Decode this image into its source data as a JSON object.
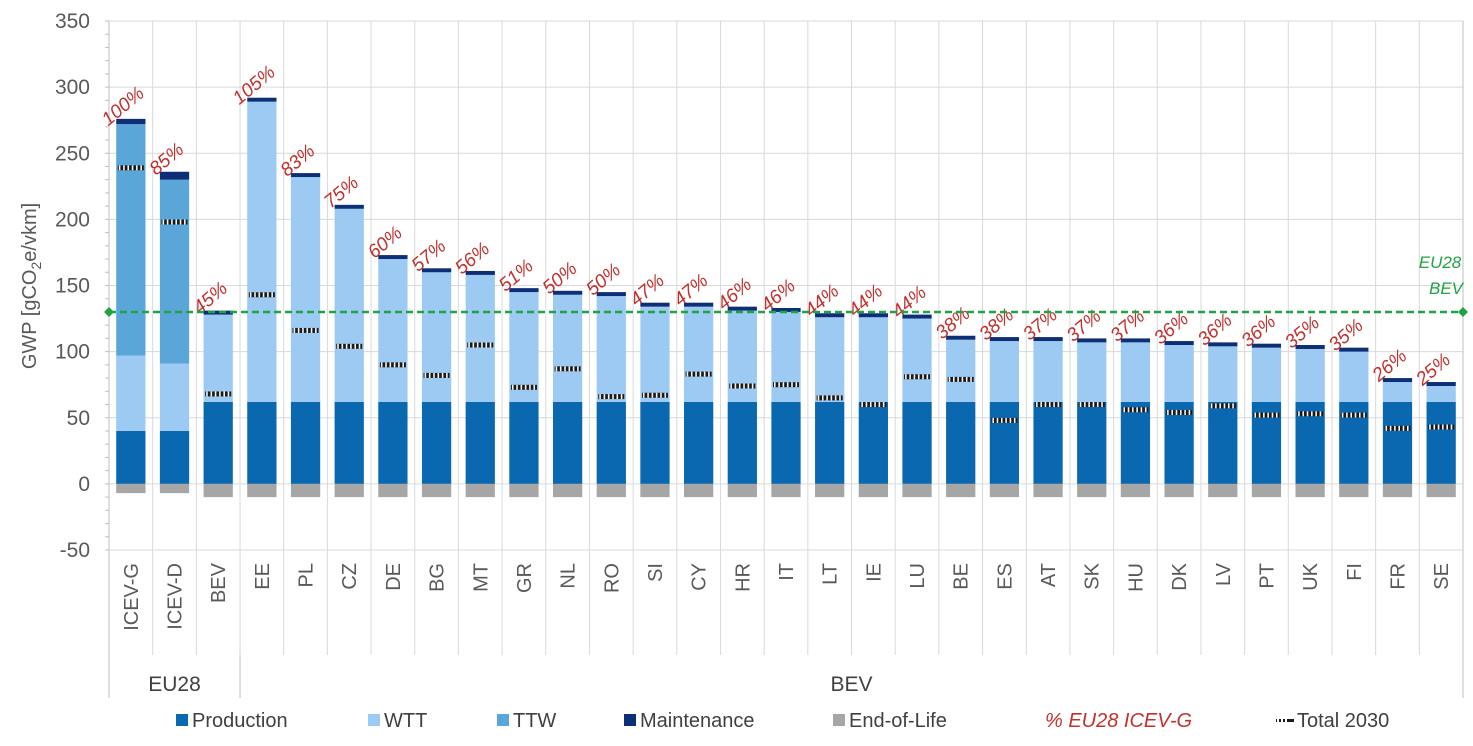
{
  "chart_data": {
    "type": "bar",
    "stacked": true,
    "ylabel": "GWP [gCO",
    "ylabel_sub": "2",
    "ylabel_suffix": "e/vkm]",
    "ylim": [
      -50,
      350
    ],
    "yticks": [
      "350",
      "300",
      "250",
      "200",
      "150",
      "100",
      "50",
      "0",
      "-50"
    ],
    "ytick_values": [
      350,
      300,
      250,
      200,
      150,
      100,
      50,
      0,
      -50
    ],
    "categories": [
      "ICEV-G",
      "ICEV-D",
      "BEV",
      "EE",
      "PL",
      "CZ",
      "DE",
      "BG",
      "MT",
      "GR",
      "NL",
      "RO",
      "SI",
      "CY",
      "HR",
      "IT",
      "LT",
      "IE",
      "LU",
      "BE",
      "ES",
      "AT",
      "SK",
      "HU",
      "DK",
      "LV",
      "PT",
      "UK",
      "FI",
      "FR",
      "SE"
    ],
    "groups": [
      {
        "label": "EU28",
        "start": 0,
        "end": 2
      },
      {
        "label": "BEV",
        "start": 3,
        "end": 30
      }
    ],
    "series": [
      {
        "name": "Production",
        "color": "#0a68b0",
        "values": [
          40,
          40,
          62,
          62,
          62,
          62,
          62,
          62,
          62,
          62,
          62,
          62,
          62,
          62,
          62,
          62,
          62,
          62,
          62,
          62,
          62,
          62,
          62,
          62,
          62,
          62,
          62,
          62,
          62,
          62,
          62
        ]
      },
      {
        "name": "WTT",
        "color": "#9ccaf3",
        "values": [
          57,
          51,
          66,
          227,
          170,
          146,
          108,
          98,
          96,
          83,
          81,
          80,
          72,
          72,
          69,
          68,
          64,
          64,
          63,
          47,
          46,
          46,
          45,
          45,
          43,
          42,
          41,
          40,
          38,
          15,
          12
        ]
      },
      {
        "name": "TTW",
        "color": "#5aa6d8",
        "values": [
          175,
          139,
          0,
          0,
          0,
          0,
          0,
          0,
          0,
          0,
          0,
          0,
          0,
          0,
          0,
          0,
          0,
          0,
          0,
          0,
          0,
          0,
          0,
          0,
          0,
          0,
          0,
          0,
          0,
          0,
          0
        ]
      },
      {
        "name": "Maintenance",
        "color": "#0d2f78",
        "values": [
          4,
          6,
          3,
          3,
          3,
          3,
          3,
          3,
          3,
          3,
          3,
          3,
          3,
          3,
          3,
          3,
          3,
          3,
          3,
          3,
          3,
          3,
          3,
          3,
          3,
          3,
          3,
          3,
          3,
          3,
          3
        ]
      },
      {
        "name": "End-of-Life",
        "color": "#a6a6a6",
        "values": [
          -7,
          -7,
          -10,
          -10,
          -10,
          -10,
          -10,
          -10,
          -10,
          -10,
          -10,
          -10,
          -10,
          -10,
          -10,
          -10,
          -10,
          -10,
          -10,
          -10,
          -10,
          -10,
          -10,
          -10,
          -10,
          -10,
          -10,
          -10,
          -10,
          -10,
          -10
        ]
      }
    ],
    "pct_labels": [
      "100%",
      "85%",
      "45%",
      "105%",
      "83%",
      "75%",
      "60%",
      "57%",
      "56%",
      "51%",
      "50%",
      "50%",
      "47%",
      "47%",
      "46%",
      "46%",
      "44%",
      "44%",
      "44%",
      "38%",
      "38%",
      "37%",
      "37%",
      "37%",
      "36%",
      "36%",
      "36%",
      "35%",
      "35%",
      "26%",
      "25%"
    ],
    "total_2030": [
      239,
      198,
      68,
      143,
      116,
      104,
      90,
      82,
      105,
      73,
      87,
      66,
      67,
      83,
      74,
      75,
      65,
      60,
      81,
      79,
      48,
      60,
      60,
      56,
      54,
      59,
      52,
      53,
      52,
      42,
      43
    ],
    "reference_line": {
      "value": 130,
      "label_line1": "EU28",
      "label_line2": "BEV",
      "color": "#1fa343"
    },
    "legend": {
      "production": "Production",
      "wtt": "WTT",
      "ttw": "TTW",
      "maintenance": "Maintenance",
      "eol": "End-of-Life",
      "pct": "% EU28 ICEV-G",
      "total": "Total 2030"
    },
    "colors": {
      "pct": "#c0312e",
      "grid": "#d9d9d9",
      "axis_text": "#595959"
    }
  }
}
